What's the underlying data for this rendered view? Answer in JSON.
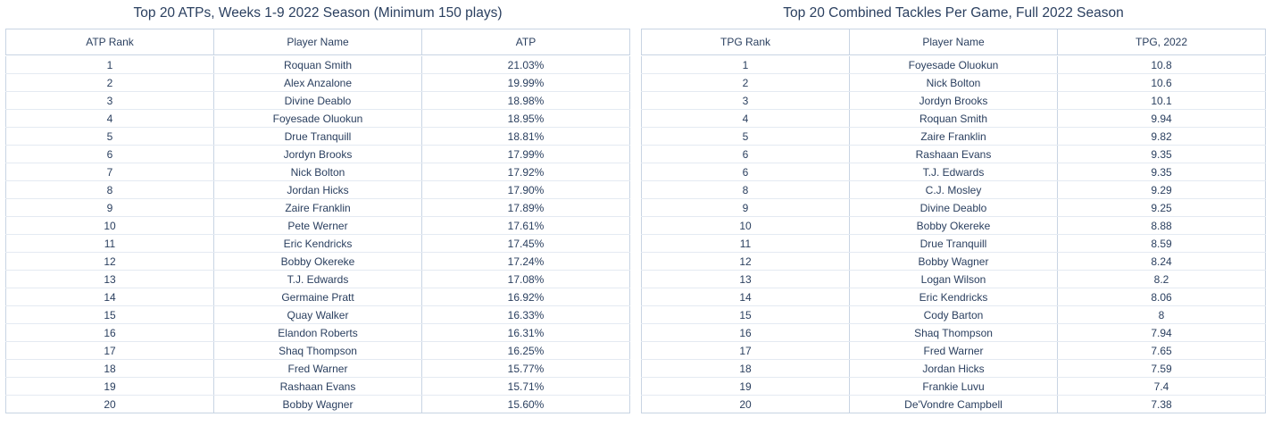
{
  "chart_data": [
    {
      "type": "table",
      "title": "Top 20 ATPs, Weeks 1-9 2022 Season (Minimum 150 plays)",
      "columns": [
        "ATP Rank",
        "Player Name",
        "ATP"
      ],
      "rows": [
        [
          "1",
          "Roquan Smith",
          "21.03%"
        ],
        [
          "2",
          "Alex Anzalone",
          "19.99%"
        ],
        [
          "3",
          "Divine Deablo",
          "18.98%"
        ],
        [
          "4",
          "Foyesade Oluokun",
          "18.95%"
        ],
        [
          "5",
          "Drue Tranquill",
          "18.81%"
        ],
        [
          "6",
          "Jordyn Brooks",
          "17.99%"
        ],
        [
          "7",
          "Nick Bolton",
          "17.92%"
        ],
        [
          "8",
          "Jordan Hicks",
          "17.90%"
        ],
        [
          "9",
          "Zaire Franklin",
          "17.89%"
        ],
        [
          "10",
          "Pete Werner",
          "17.61%"
        ],
        [
          "11",
          "Eric Kendricks",
          "17.45%"
        ],
        [
          "12",
          "Bobby Okereke",
          "17.24%"
        ],
        [
          "13",
          "T.J. Edwards",
          "17.08%"
        ],
        [
          "14",
          "Germaine Pratt",
          "16.92%"
        ],
        [
          "15",
          "Quay Walker",
          "16.33%"
        ],
        [
          "16",
          "Elandon Roberts",
          "16.31%"
        ],
        [
          "17",
          "Shaq Thompson",
          "16.25%"
        ],
        [
          "18",
          "Fred Warner",
          "15.77%"
        ],
        [
          "19",
          "Rashaan Evans",
          "15.71%"
        ],
        [
          "20",
          "Bobby Wagner",
          "15.60%"
        ]
      ]
    },
    {
      "type": "table",
      "title": "Top 20 Combined Tackles Per Game, Full 2022 Season",
      "columns": [
        "TPG Rank",
        "Player Name",
        "TPG, 2022"
      ],
      "rows": [
        [
          "1",
          "Foyesade Oluokun",
          "10.8"
        ],
        [
          "2",
          "Nick Bolton",
          "10.6"
        ],
        [
          "3",
          "Jordyn Brooks",
          "10.1"
        ],
        [
          "4",
          "Roquan Smith",
          "9.94"
        ],
        [
          "5",
          "Zaire Franklin",
          "9.82"
        ],
        [
          "6",
          "Rashaan Evans",
          "9.35"
        ],
        [
          "6",
          "T.J. Edwards",
          "9.35"
        ],
        [
          "8",
          "C.J. Mosley",
          "9.29"
        ],
        [
          "9",
          "Divine Deablo",
          "9.25"
        ],
        [
          "10",
          "Bobby Okereke",
          "8.88"
        ],
        [
          "11",
          "Drue Tranquill",
          "8.59"
        ],
        [
          "12",
          "Bobby Wagner",
          "8.24"
        ],
        [
          "13",
          "Logan Wilson",
          "8.2"
        ],
        [
          "14",
          "Eric Kendricks",
          "8.06"
        ],
        [
          "15",
          "Cody Barton",
          "8"
        ],
        [
          "16",
          "Shaq Thompson",
          "7.94"
        ],
        [
          "17",
          "Fred Warner",
          "7.65"
        ],
        [
          "18",
          "Jordan Hicks",
          "7.59"
        ],
        [
          "19",
          "Frankie Luvu",
          "7.4"
        ],
        [
          "20",
          "De'Vondre Campbell",
          "7.38"
        ]
      ]
    }
  ]
}
